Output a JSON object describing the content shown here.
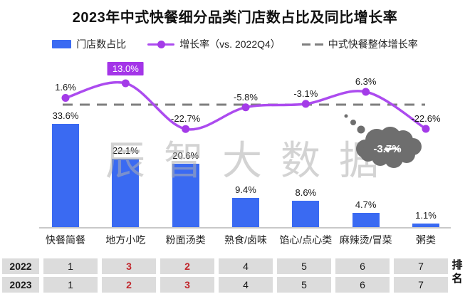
{
  "title": "2023年中式快餐细分品类门店数占比及同比增长率",
  "legend": {
    "bar_label": "门店数占比",
    "line_label": "增长率（vs. 2022Q4）",
    "dashed_label": "中式快餐整体增长率"
  },
  "watermark": "辰智大数据",
  "chart_data": {
    "type": "bar+line",
    "title": "2023年中式快餐细分品类门店数占比及同比增长率",
    "categories": [
      "快餐简餐",
      "地方小吃",
      "粉面汤类",
      "熟食/卤味",
      "馅心/点心类",
      "麻辣烫/冒菜",
      "粥类"
    ],
    "series": [
      {
        "name": "门店数占比",
        "type": "bar",
        "unit": "%",
        "values": [
          33.6,
          22.1,
          20.6,
          9.4,
          8.6,
          4.7,
          1.1
        ],
        "color": "#3A6AF2"
      },
      {
        "name": "增长率（vs. 2022Q4）",
        "type": "line",
        "unit": "%",
        "values": [
          1.6,
          13.0,
          -22.7,
          -5.8,
          -3.1,
          6.3,
          -22.6
        ],
        "color": "#AC4BEF",
        "marker_color": "#A43BE8",
        "highlight_index": 1,
        "highlight_box_color": "#A435E8"
      },
      {
        "name": "中式快餐整体增长率",
        "type": "reference-line",
        "unit": "%",
        "value": -3.7,
        "color": "#7F7F7F",
        "callout": "-3.7%"
      }
    ],
    "legend_position": "top",
    "grid": false,
    "value_labels_shown": true
  },
  "ranking_table": {
    "axis_label": "排名",
    "rows": [
      {
        "year": "2022",
        "cells": [
          {
            "v": "1",
            "red": false
          },
          {
            "v": "3",
            "red": true
          },
          {
            "v": "2",
            "red": true
          },
          {
            "v": "4",
            "red": false
          },
          {
            "v": "5",
            "red": false
          },
          {
            "v": "6",
            "red": false
          },
          {
            "v": "7",
            "red": false
          }
        ]
      },
      {
        "year": "2023",
        "cells": [
          {
            "v": "1",
            "red": false
          },
          {
            "v": "2",
            "red": true
          },
          {
            "v": "3",
            "red": true
          },
          {
            "v": "4",
            "red": false
          },
          {
            "v": "5",
            "red": false
          },
          {
            "v": "6",
            "red": false
          },
          {
            "v": "7",
            "red": false
          }
        ]
      }
    ]
  },
  "colors": {
    "bar": "#3A6AF2",
    "line": "#AC4BEF",
    "highlight_box": "#A435E8",
    "reference_dash": "#7F7F7F",
    "cloud": "#6E6E6E",
    "table_cell_bg": "#DCDCDC",
    "rank_red": "#C1272D"
  }
}
